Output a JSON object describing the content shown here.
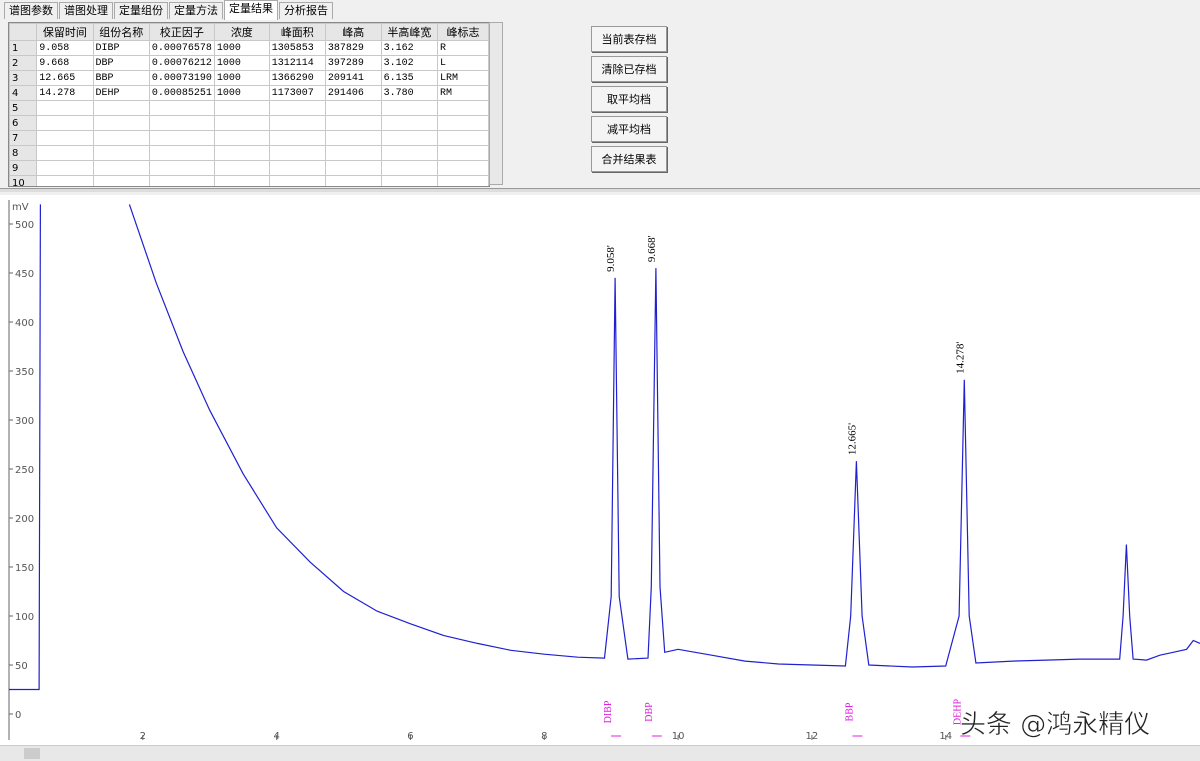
{
  "tabs": {
    "items": [
      "谱图参数",
      "谱图处理",
      "定量组份",
      "定量方法",
      "定量结果",
      "分析报告"
    ],
    "active": 4
  },
  "table": {
    "headers": [
      "保留时间",
      "组份名称",
      "校正因子",
      "浓度",
      "峰面积",
      "峰高",
      "半高峰宽",
      "峰标志"
    ],
    "rows": [
      {
        "n": "1",
        "cells": [
          "9.058",
          "DIBP",
          "0.00076578",
          "1000",
          "1305853",
          "387829",
          "3.162",
          "R"
        ]
      },
      {
        "n": "2",
        "cells": [
          "9.668",
          "DBP",
          "0.00076212",
          "1000",
          "1312114",
          "397289",
          "3.102",
          "L"
        ]
      },
      {
        "n": "3",
        "cells": [
          "12.665",
          "BBP",
          "0.00073190",
          "1000",
          "1366290",
          "209141",
          "6.135",
          "LRM"
        ]
      },
      {
        "n": "4",
        "cells": [
          "14.278",
          "DEHP",
          "0.00085251",
          "1000",
          "1173007",
          "291406",
          "3.780",
          "RM"
        ]
      },
      {
        "n": "5"
      },
      {
        "n": "6"
      },
      {
        "n": "7"
      },
      {
        "n": "8"
      },
      {
        "n": "9"
      },
      {
        "n": "10"
      }
    ]
  },
  "buttons": [
    "当前表存档",
    "清除已存档",
    "取平均档",
    "减平均档",
    "合并结果表"
  ],
  "chromatogram": {
    "y_label": "mV",
    "xlim": [
      0,
      17.8
    ],
    "ylim": [
      0,
      520
    ],
    "xticks": [
      2,
      4,
      6,
      8,
      10,
      12,
      14
    ],
    "yticks": [
      0,
      50,
      100,
      150,
      200,
      250,
      300,
      350,
      400,
      450,
      500
    ],
    "color": "#2020d0",
    "trace": {
      "x": [
        0,
        0.45,
        0.47,
        1.0,
        1.8,
        2.2,
        2.6,
        3.0,
        3.5,
        4.0,
        4.5,
        5.0,
        5.5,
        6.0,
        6.5,
        7.0,
        7.5,
        8.0,
        8.5,
        8.9,
        9.0,
        9.058,
        9.12,
        9.25,
        9.55,
        9.6,
        9.668,
        9.73,
        9.8,
        10.0,
        10.5,
        11.0,
        11.5,
        12.0,
        12.5,
        12.58,
        12.665,
        12.75,
        12.85,
        13.5,
        14.0,
        14.2,
        14.278,
        14.35,
        14.45,
        15.0,
        15.5,
        16.0,
        16.6,
        16.65,
        16.7,
        16.75,
        16.8,
        17.0,
        17.2,
        17.4,
        17.6,
        17.7,
        17.8
      ],
      "y": [
        25,
        25,
        520,
        null,
        520,
        440,
        370,
        310,
        245,
        190,
        155,
        125,
        105,
        92,
        80,
        72,
        65,
        61,
        58,
        57,
        120,
        445,
        120,
        56,
        57,
        130,
        455,
        130,
        63,
        66,
        60,
        54,
        51,
        50,
        49,
        100,
        258,
        100,
        50,
        48,
        49,
        100,
        341,
        100,
        52,
        54,
        55,
        56,
        56,
        100,
        173,
        100,
        56,
        55,
        60,
        63,
        66,
        75,
        72
      ]
    },
    "peaks": [
      {
        "label": "9.058'",
        "time": 9.058,
        "height": 445
      },
      {
        "label": "9.668'",
        "time": 9.668,
        "height": 455
      },
      {
        "label": "12.665'",
        "time": 12.665,
        "height": 258
      },
      {
        "label": "14.278'",
        "time": 14.278,
        "height": 341
      }
    ],
    "components": [
      {
        "label": "DIBP",
        "time": 9.058
      },
      {
        "label": "DBP",
        "time": 9.668
      },
      {
        "label": "BBP",
        "time": 12.665
      },
      {
        "label": "DEHP",
        "time": 14.278
      }
    ]
  },
  "watermark": "头条 @鸿永精仪"
}
